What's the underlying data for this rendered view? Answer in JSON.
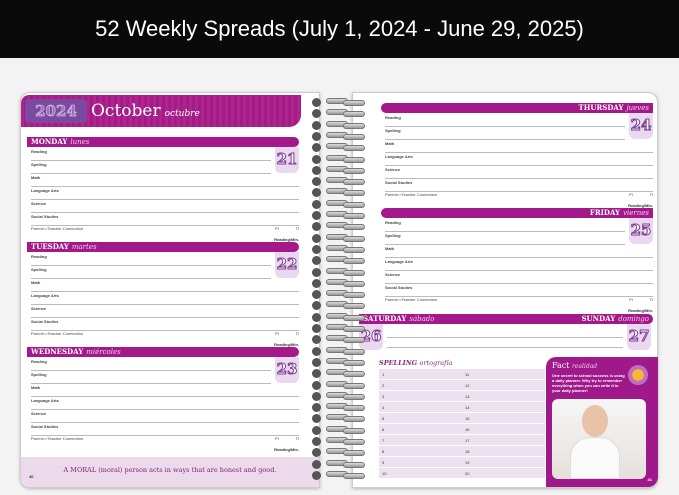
{
  "banner": {
    "title": "52 Weekly Spreads (July 1, 2024 - June 29, 2025)"
  },
  "colors": {
    "accent": "#a3198a",
    "light": "#ecd9ec",
    "year_box": "#7b4aa0"
  },
  "left_page": {
    "year": "2024",
    "month": "October",
    "month_es": "octubre",
    "days": [
      {
        "day": "MONDAY",
        "day_es": "lunes",
        "date": "21"
      },
      {
        "day": "TUESDAY",
        "day_es": "martes",
        "date": "22"
      },
      {
        "day": "WEDNESDAY",
        "day_es": "miércoles",
        "date": "23"
      }
    ],
    "moral": "A MORAL (moral) person acts in ways that are honest and good.",
    "page_number": "40"
  },
  "subjects": [
    "Reading",
    "Spelling",
    "Math",
    "Language Arts",
    "Science",
    "Social Studies"
  ],
  "connection_label": "Parent<>Teacher Connection",
  "initials": [
    "PI",
    "TI"
  ],
  "reading_minutes": "Reading/Min.",
  "right_page": {
    "days": [
      {
        "day": "THURSDAY",
        "day_es": "jueves",
        "date": "24"
      },
      {
        "day": "FRIDAY",
        "day_es": "viernes",
        "date": "25"
      }
    ],
    "weekend": {
      "saturday": "SATURDAY",
      "saturday_es": "sábado",
      "sat_date": "26",
      "sunday": "SUNDAY",
      "sunday_es": "domingo",
      "sun_date": "27"
    },
    "spelling": {
      "title": "SPELLING",
      "title_es": "ortografía",
      "numbers_left": [
        "1",
        "2",
        "3",
        "4",
        "5",
        "6",
        "7",
        "8",
        "9",
        "10"
      ],
      "numbers_right": [
        "11",
        "12",
        "13",
        "14",
        "15",
        "16",
        "17",
        "18",
        "19",
        "20"
      ]
    },
    "fact": {
      "title": "Fact",
      "title_es": "realidad",
      "text": "One secret to school success is using a daily planner. Why try to remember everything when you can write it in your daily planner!",
      "icon": "lightbulb-icon"
    },
    "page_number": "41"
  }
}
